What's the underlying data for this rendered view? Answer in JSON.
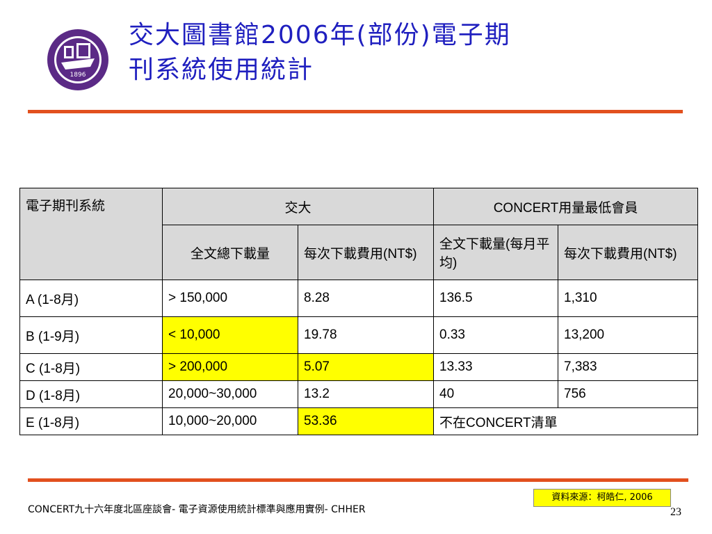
{
  "title": {
    "line1": "交大圖書館2006年(部份)電子期",
    "line2": "刊系統使用統計"
  },
  "logo": {
    "year_text": "1896"
  },
  "colors": {
    "title": "#1f1fbf",
    "rule": "#e2501e",
    "highlight": "#ffff00",
    "header_bg": "#d9d9d9"
  },
  "table": {
    "headers": {
      "system": "電子期刊系統",
      "nctu": "交大",
      "concert": "CONCERT用量最低會員",
      "nctu_downloads": "全文總下載量",
      "nctu_cost": "每次下載費用(NT$)",
      "concert_downloads": "全文下載量(每月平均)",
      "concert_cost": "每次下載費用(NT$)"
    },
    "rows": [
      {
        "system": "A (1-8月)",
        "nctu_downloads": "> 150,000",
        "nctu_cost": "8.28",
        "concert_downloads": "136.5",
        "concert_cost": "1,310"
      },
      {
        "system": "B (1-9月)",
        "nctu_downloads": "< 10,000",
        "nctu_cost": "19.78",
        "concert_downloads": "0.33",
        "concert_cost": "13,200"
      },
      {
        "system": "C (1-8月)",
        "nctu_downloads": "> 200,000",
        "nctu_cost": "5.07",
        "concert_downloads": "13.33",
        "concert_cost": "7,383"
      },
      {
        "system": "D (1-8月)",
        "nctu_downloads": "20,000~30,000",
        "nctu_cost": "13.2",
        "concert_downloads": "40",
        "concert_cost": "756"
      },
      {
        "system": "E (1-8月)",
        "nctu_downloads": "10,000~20,000",
        "nctu_cost": "53.36",
        "concert_note": "不在CONCERT清單"
      }
    ]
  },
  "source": "資料來源：柯皓仁, 2006",
  "footer": "CONCERT九十六年度北區座談會- 電子資源使用統計標準與應用實例- CHHER",
  "page_number": "23"
}
